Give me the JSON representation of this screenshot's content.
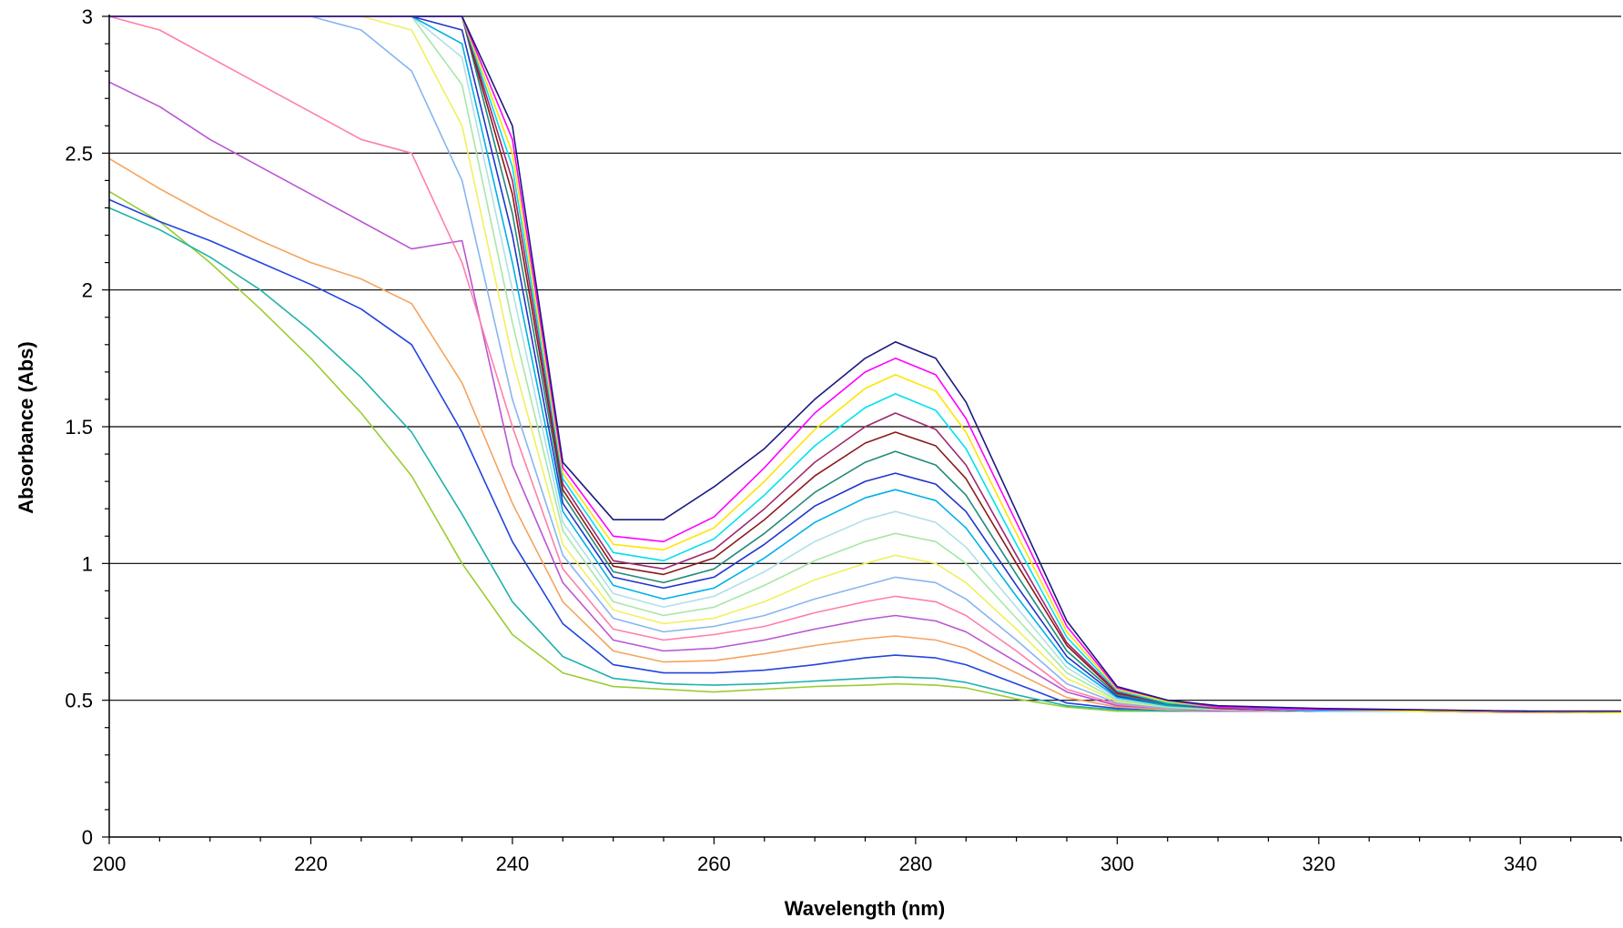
{
  "chart_data": {
    "type": "line",
    "title": "",
    "xlabel": "Wavelength (nm)",
    "ylabel": "Absorbance (Abs)",
    "xlim": [
      200,
      350
    ],
    "ylim": [
      0,
      3
    ],
    "x_ticks": [
      200,
      220,
      240,
      260,
      280,
      300,
      320,
      340
    ],
    "y_ticks": [
      0,
      0.5,
      1,
      1.5,
      2,
      2.5,
      3
    ],
    "x_tick_labels": [
      "200",
      "220",
      "240",
      "260",
      "280",
      "300",
      "320",
      "340"
    ],
    "y_tick_labels": [
      "0",
      "0.5",
      "1",
      "1.5",
      "2",
      "2.5",
      "3"
    ],
    "grid": "horizontal",
    "legend": "none",
    "x": [
      200,
      205,
      210,
      215,
      220,
      225,
      230,
      235,
      240,
      245,
      250,
      255,
      260,
      265,
      270,
      275,
      278,
      282,
      285,
      290,
      295,
      300,
      305,
      310,
      320,
      330,
      340,
      350
    ],
    "series": [
      {
        "color": "#9ACD32",
        "values": [
          2.36,
          2.25,
          2.1,
          1.93,
          1.75,
          1.55,
          1.32,
          1.0,
          0.74,
          0.6,
          0.55,
          0.54,
          0.53,
          0.54,
          0.55,
          0.555,
          0.56,
          0.555,
          0.545,
          0.505,
          0.475,
          0.46,
          0.46,
          0.46,
          0.46,
          0.46,
          0.455,
          0.455
        ]
      },
      {
        "color": "#20B2AA",
        "values": [
          2.3,
          2.22,
          2.12,
          2.0,
          1.85,
          1.68,
          1.48,
          1.18,
          0.86,
          0.66,
          0.58,
          0.56,
          0.555,
          0.56,
          0.57,
          0.58,
          0.585,
          0.58,
          0.565,
          0.52,
          0.48,
          0.465,
          0.46,
          0.46,
          0.46,
          0.46,
          0.455,
          0.455
        ]
      },
      {
        "color": "#2244DD",
        "values": [
          2.33,
          2.25,
          2.18,
          2.1,
          2.02,
          1.93,
          1.8,
          1.48,
          1.08,
          0.78,
          0.63,
          0.6,
          0.6,
          0.61,
          0.63,
          0.655,
          0.665,
          0.655,
          0.63,
          0.56,
          0.49,
          0.47,
          0.465,
          0.46,
          0.46,
          0.46,
          0.455,
          0.455
        ]
      },
      {
        "color": "#F4A460",
        "values": [
          2.48,
          2.37,
          2.27,
          2.18,
          2.1,
          2.04,
          1.95,
          1.66,
          1.22,
          0.86,
          0.68,
          0.64,
          0.645,
          0.67,
          0.7,
          0.725,
          0.735,
          0.72,
          0.69,
          0.6,
          0.51,
          0.475,
          0.465,
          0.46,
          0.46,
          0.46,
          0.455,
          0.455
        ]
      },
      {
        "color": "#BA55D3",
        "values": [
          2.76,
          2.67,
          2.55,
          2.45,
          2.35,
          2.25,
          2.15,
          2.18,
          1.36,
          0.93,
          0.72,
          0.68,
          0.69,
          0.72,
          0.76,
          0.795,
          0.81,
          0.79,
          0.75,
          0.64,
          0.53,
          0.48,
          0.47,
          0.46,
          0.46,
          0.46,
          0.46,
          0.455
        ]
      },
      {
        "color": "#FF7FAA",
        "values": [
          3.0,
          2.95,
          2.85,
          2.75,
          2.65,
          2.55,
          2.5,
          2.1,
          1.5,
          0.98,
          0.76,
          0.72,
          0.74,
          0.77,
          0.82,
          0.86,
          0.88,
          0.86,
          0.81,
          0.68,
          0.54,
          0.485,
          0.47,
          0.465,
          0.46,
          0.46,
          0.46,
          0.455
        ]
      },
      {
        "color": "#87B5F0",
        "values": [
          3.0,
          3.0,
          3.0,
          3.0,
          3.0,
          2.95,
          2.8,
          2.4,
          1.6,
          1.03,
          0.8,
          0.75,
          0.77,
          0.81,
          0.87,
          0.92,
          0.95,
          0.93,
          0.87,
          0.72,
          0.56,
          0.49,
          0.47,
          0.465,
          0.46,
          0.46,
          0.46,
          0.455
        ]
      },
      {
        "color": "#F0F060",
        "values": [
          3.0,
          3.0,
          3.0,
          3.0,
          3.0,
          3.0,
          2.95,
          2.6,
          1.75,
          1.07,
          0.83,
          0.78,
          0.8,
          0.86,
          0.94,
          1.0,
          1.03,
          1.0,
          0.93,
          0.76,
          0.58,
          0.495,
          0.475,
          0.465,
          0.46,
          0.46,
          0.46,
          0.455
        ]
      },
      {
        "color": "#A8E6A8",
        "values": [
          3.0,
          3.0,
          3.0,
          3.0,
          3.0,
          3.0,
          3.0,
          2.75,
          1.88,
          1.12,
          0.86,
          0.81,
          0.84,
          0.92,
          1.01,
          1.08,
          1.11,
          1.08,
          1.0,
          0.8,
          0.6,
          0.5,
          0.475,
          0.465,
          0.46,
          0.46,
          0.46,
          0.455
        ]
      },
      {
        "color": "#B0E0E6",
        "values": [
          3.0,
          3.0,
          3.0,
          3.0,
          3.0,
          3.0,
          3.0,
          2.85,
          2.0,
          1.15,
          0.89,
          0.84,
          0.88,
          0.97,
          1.08,
          1.16,
          1.19,
          1.15,
          1.06,
          0.84,
          0.62,
          0.505,
          0.48,
          0.47,
          0.46,
          0.46,
          0.46,
          0.455
        ]
      },
      {
        "color": "#00B0E8",
        "values": [
          3.0,
          3.0,
          3.0,
          3.0,
          3.0,
          3.0,
          3.0,
          2.9,
          2.1,
          1.19,
          0.92,
          0.87,
          0.91,
          1.02,
          1.15,
          1.24,
          1.27,
          1.23,
          1.13,
          0.88,
          0.64,
          0.51,
          0.48,
          0.47,
          0.46,
          0.46,
          0.46,
          0.455
        ]
      },
      {
        "color": "#2233CC",
        "values": [
          3.0,
          3.0,
          3.0,
          3.0,
          3.0,
          3.0,
          3.0,
          2.95,
          2.2,
          1.22,
          0.95,
          0.91,
          0.95,
          1.07,
          1.21,
          1.3,
          1.33,
          1.29,
          1.19,
          0.92,
          0.66,
          0.515,
          0.485,
          0.47,
          0.46,
          0.46,
          0.46,
          0.455
        ]
      },
      {
        "color": "#228B7A",
        "values": [
          3.0,
          3.0,
          3.0,
          3.0,
          3.0,
          3.0,
          3.0,
          3.0,
          2.28,
          1.25,
          0.97,
          0.93,
          0.98,
          1.11,
          1.26,
          1.37,
          1.41,
          1.36,
          1.25,
          0.96,
          0.68,
          0.52,
          0.485,
          0.47,
          0.46,
          0.46,
          0.46,
          0.455
        ]
      },
      {
        "color": "#8B1A1A",
        "values": [
          3.0,
          3.0,
          3.0,
          3.0,
          3.0,
          3.0,
          3.0,
          3.0,
          2.35,
          1.27,
          0.99,
          0.96,
          1.02,
          1.16,
          1.32,
          1.44,
          1.48,
          1.43,
          1.31,
          1.0,
          0.7,
          0.525,
          0.49,
          0.47,
          0.46,
          0.46,
          0.46,
          0.455
        ]
      },
      {
        "color": "#A0286E",
        "values": [
          3.0,
          3.0,
          3.0,
          3.0,
          3.0,
          3.0,
          3.0,
          3.0,
          2.4,
          1.29,
          1.01,
          0.98,
          1.05,
          1.2,
          1.37,
          1.5,
          1.55,
          1.49,
          1.36,
          1.03,
          0.71,
          0.53,
          0.49,
          0.47,
          0.46,
          0.46,
          0.46,
          0.455
        ]
      },
      {
        "color": "#00E0F0",
        "values": [
          3.0,
          3.0,
          3.0,
          3.0,
          3.0,
          3.0,
          3.0,
          3.0,
          2.45,
          1.31,
          1.04,
          1.01,
          1.09,
          1.25,
          1.43,
          1.57,
          1.62,
          1.56,
          1.42,
          1.07,
          0.73,
          0.535,
          0.49,
          0.475,
          0.46,
          0.46,
          0.46,
          0.455
        ]
      },
      {
        "color": "#FFE400",
        "values": [
          3.0,
          3.0,
          3.0,
          3.0,
          3.0,
          3.0,
          3.0,
          3.0,
          2.5,
          1.33,
          1.07,
          1.05,
          1.13,
          1.3,
          1.49,
          1.64,
          1.69,
          1.63,
          1.48,
          1.11,
          0.75,
          0.54,
          0.495,
          0.475,
          0.465,
          0.46,
          0.46,
          0.455
        ]
      },
      {
        "color": "#FF00FF",
        "values": [
          3.0,
          3.0,
          3.0,
          3.0,
          3.0,
          3.0,
          3.0,
          3.0,
          2.55,
          1.35,
          1.1,
          1.08,
          1.17,
          1.35,
          1.55,
          1.7,
          1.75,
          1.69,
          1.53,
          1.15,
          0.77,
          0.545,
          0.5,
          0.475,
          0.465,
          0.465,
          0.46,
          0.46
        ]
      },
      {
        "color": "#1A1A80",
        "values": [
          3.0,
          3.0,
          3.0,
          3.0,
          3.0,
          3.0,
          3.0,
          3.0,
          2.6,
          1.37,
          1.16,
          1.16,
          1.28,
          1.42,
          1.6,
          1.75,
          1.81,
          1.75,
          1.59,
          1.19,
          0.79,
          0.55,
          0.5,
          0.48,
          0.47,
          0.465,
          0.46,
          0.46
        ]
      }
    ]
  }
}
